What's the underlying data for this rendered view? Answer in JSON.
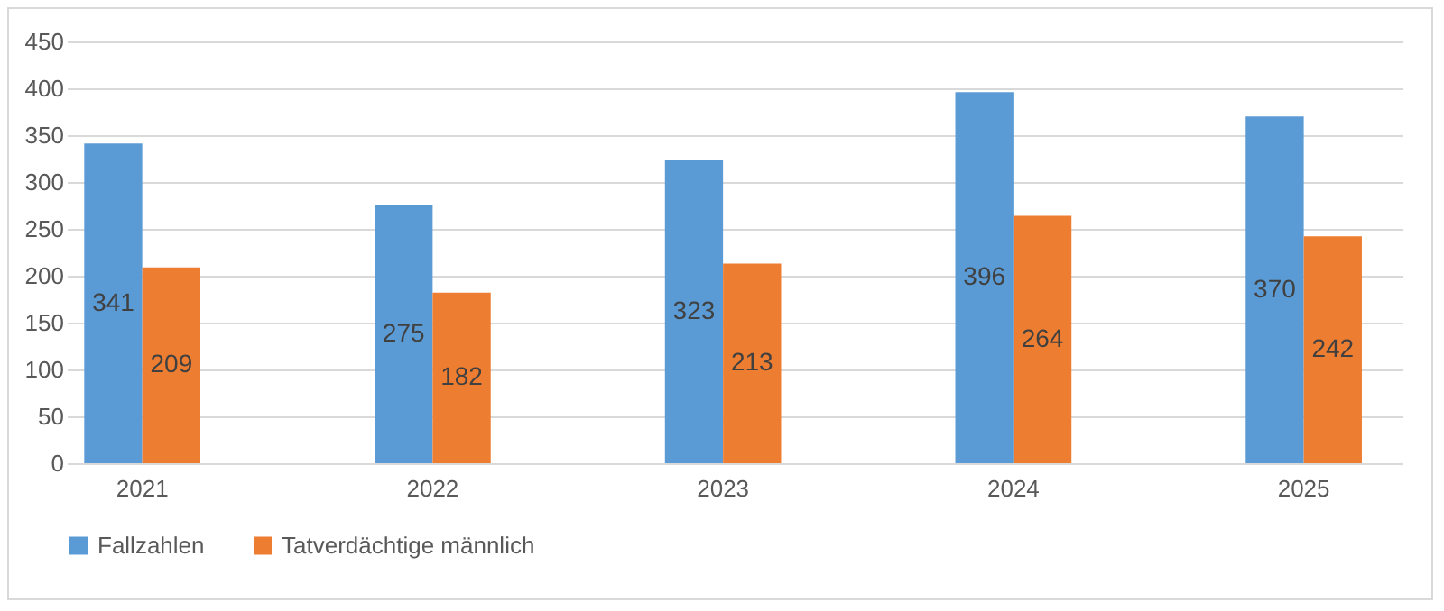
{
  "chart_data": {
    "type": "bar",
    "categories": [
      "2021",
      "2022",
      "2023",
      "2024",
      "2025"
    ],
    "series": [
      {
        "name": "Fallzahlen",
        "color": "#5b9bd5",
        "values": [
          341,
          275,
          323,
          396,
          370
        ]
      },
      {
        "name": "Tatverdächtige männlich",
        "color": "#ed7d31",
        "values": [
          209,
          182,
          213,
          264,
          242
        ]
      }
    ],
    "ylim": [
      0,
      450
    ],
    "yticks": [
      0,
      50,
      100,
      150,
      200,
      250,
      300,
      350,
      400,
      450
    ],
    "grid": "y",
    "legend": "bottom",
    "data_labels": true
  }
}
